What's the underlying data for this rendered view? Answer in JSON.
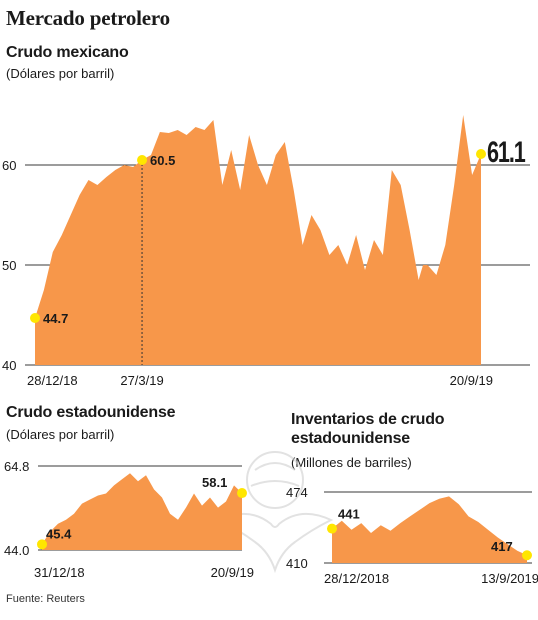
{
  "page": {
    "title": "Mercado petrolero",
    "source": "Fuente: Reuters"
  },
  "colors": {
    "area": "#f7974a",
    "marker": "#ffe600",
    "grid": "#3a3a3a",
    "text": "#1a1a1a"
  },
  "chart_data": [
    {
      "id": "mexicano",
      "type": "area",
      "title": "Crudo mexicano",
      "subtitle": "(Dólares por barril)",
      "ylim": [
        40,
        65
      ],
      "yticks": [
        40,
        50,
        60
      ],
      "xlabels": [
        "28/12/18",
        "27/3/19",
        "20/9/19"
      ],
      "x": [
        0,
        2,
        4,
        6,
        8,
        10,
        12,
        14,
        16,
        18,
        20,
        22,
        24,
        26,
        28,
        30,
        32,
        34,
        36,
        38,
        40,
        42,
        44,
        46,
        48,
        50,
        52,
        54,
        56,
        58,
        60,
        62,
        64,
        66,
        68,
        70,
        72,
        74,
        76,
        78,
        80,
        82,
        84,
        86,
        87,
        88,
        90,
        92,
        94,
        96,
        98,
        100
      ],
      "values": [
        44.7,
        47.5,
        51.3,
        53.0,
        55.0,
        57.0,
        58.5,
        58.0,
        58.8,
        59.5,
        60.0,
        59.8,
        60.5,
        61.0,
        63.3,
        63.2,
        63.5,
        63.0,
        63.8,
        63.5,
        64.5,
        58.0,
        61.5,
        57.5,
        63.0,
        60.0,
        58.0,
        61.0,
        62.3,
        57.5,
        52.0,
        55.0,
        53.5,
        51.0,
        52.0,
        50.0,
        53.0,
        49.5,
        52.5,
        51.0,
        59.5,
        58.0,
        53.5,
        48.5,
        50.0,
        50.0,
        49.0,
        52.0,
        58.0,
        65.0,
        59.0,
        61.1
      ],
      "annotations": [
        {
          "label": "44.7",
          "x": 0,
          "value": 44.7
        },
        {
          "label": "60.5",
          "x": 24,
          "value": 60.5
        },
        {
          "label": "61.1",
          "x": 100,
          "value": 61.1
        }
      ],
      "reference_line_x": 24
    },
    {
      "id": "estadounidense",
      "type": "area",
      "title": "Crudo estadounidense",
      "subtitle": "(Dólares por barril)",
      "ylim": [
        44.0,
        64.8
      ],
      "yticks": [
        44.0,
        64.8
      ],
      "xlabels": [
        "31/12/18",
        "20/9/19"
      ],
      "x": [
        0,
        4,
        8,
        12,
        16,
        20,
        24,
        28,
        32,
        36,
        40,
        44,
        48,
        52,
        56,
        60,
        64,
        68,
        72,
        76,
        80,
        84,
        88,
        92,
        96,
        100
      ],
      "values": [
        45.4,
        48.5,
        50.5,
        51.5,
        53.0,
        55.5,
        56.5,
        57.5,
        58.0,
        60.0,
        61.5,
        63.0,
        61.0,
        62.5,
        59.0,
        57.0,
        53.0,
        51.5,
        54.5,
        58.0,
        55.0,
        57.0,
        54.5,
        56.0,
        60.0,
        58.1
      ],
      "annotations": [
        {
          "label": "45.4",
          "x": 0,
          "value": 45.4
        },
        {
          "label": "58.1",
          "x": 100,
          "value": 58.1
        }
      ]
    },
    {
      "id": "inventarios",
      "type": "area",
      "title": "Inventarios de crudo estadounidense",
      "title_lines": [
        "Inventarios de crudo",
        "estadounidense"
      ],
      "subtitle": "(Millones de barriles)",
      "ylim": [
        410,
        474
      ],
      "yticks": [
        410,
        474
      ],
      "xlabels": [
        "28/12/2018",
        "13/9/2019"
      ],
      "x": [
        0,
        5,
        10,
        15,
        20,
        25,
        30,
        35,
        40,
        45,
        50,
        55,
        60,
        65,
        70,
        75,
        80,
        85,
        90,
        95,
        100
      ],
      "values": [
        441,
        448,
        440,
        446,
        437,
        444,
        439,
        446,
        452,
        458,
        464,
        468,
        470,
        463,
        452,
        447,
        440,
        433,
        427,
        421,
        417
      ],
      "annotations": [
        {
          "label": "441",
          "x": 0,
          "value": 441
        },
        {
          "label": "417",
          "x": 100,
          "value": 417
        }
      ]
    }
  ]
}
